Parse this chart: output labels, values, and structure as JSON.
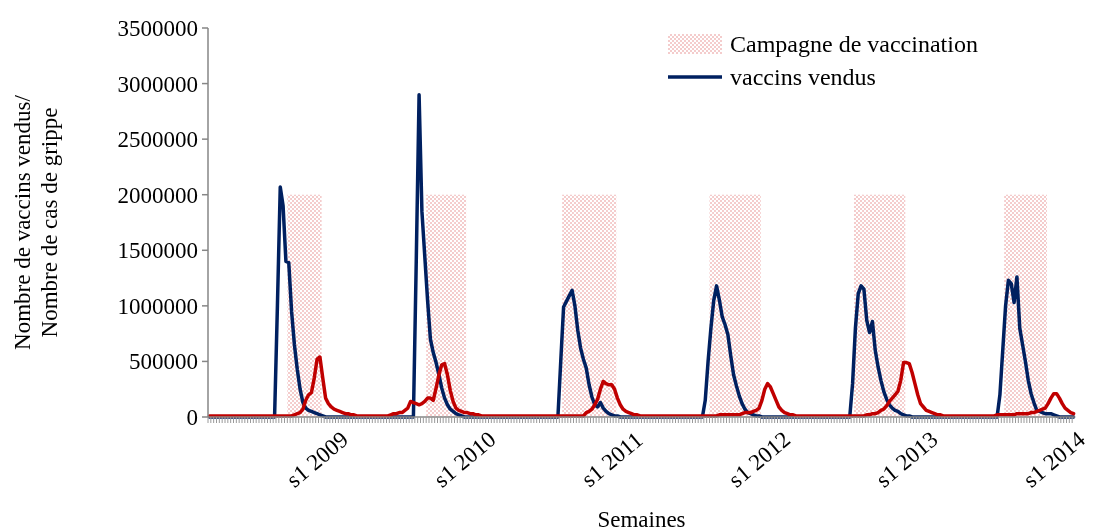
{
  "chart_data": {
    "type": "line",
    "xlabel": "Semaines",
    "ylabel": "Nombre de vaccins vendus/\nNombre de cas de grippe",
    "categories": [
      null,
      null,
      null,
      null,
      null,
      null,
      null,
      null,
      null,
      null,
      null,
      null,
      null,
      null,
      null,
      null,
      null,
      null,
      null,
      null,
      null,
      null,
      null,
      null,
      null,
      null,
      null,
      null,
      null,
      null,
      null,
      null,
      null,
      null,
      null,
      null,
      null,
      null,
      "s1 2009",
      null,
      null,
      null,
      null,
      null,
      null,
      null,
      null,
      null,
      null,
      null,
      null,
      null,
      null,
      null,
      null,
      null,
      null,
      null,
      null,
      null,
      null,
      null,
      null,
      null,
      null,
      null,
      null,
      null,
      null,
      null,
      null,
      null,
      null,
      null,
      null,
      null,
      null,
      null,
      null,
      null,
      null,
      null,
      null,
      null,
      null,
      null,
      null,
      null,
      null,
      null,
      "s1 2010",
      null,
      null,
      null,
      null,
      null,
      null,
      null,
      null,
      null,
      null,
      null,
      null,
      null,
      null,
      null,
      null,
      null,
      null,
      null,
      null,
      null,
      null,
      null,
      null,
      null,
      null,
      null,
      null,
      null,
      null,
      null,
      null,
      null,
      null,
      null,
      null,
      null,
      null,
      null,
      null,
      null,
      null,
      null,
      null,
      null,
      null,
      null,
      null,
      null,
      null,
      null,
      "s1 2011",
      null,
      null,
      null,
      null,
      null,
      null,
      null,
      null,
      null,
      null,
      null,
      null,
      null,
      null,
      null,
      null,
      null,
      null,
      null,
      null,
      null,
      null,
      null,
      null,
      null,
      null,
      null,
      null,
      null,
      null,
      null,
      null,
      null,
      null,
      null,
      null,
      null,
      null,
      null,
      null,
      null,
      null,
      null,
      null,
      null,
      null,
      null,
      null,
      null,
      null,
      null,
      "s1 2012",
      null,
      null,
      null,
      null,
      null,
      null,
      null,
      null,
      null,
      null,
      null,
      null,
      null,
      null,
      null,
      null,
      null,
      null,
      null,
      null,
      null,
      null,
      null,
      null,
      null,
      null,
      null,
      null,
      null,
      null,
      null,
      null,
      null,
      null,
      null,
      null,
      null,
      null,
      null,
      null,
      null,
      null,
      null,
      null,
      null,
      null,
      null,
      null,
      null,
      null,
      null,
      "s1 2013",
      null,
      null,
      null,
      null,
      null,
      null,
      null,
      null,
      null,
      null,
      null,
      null,
      null,
      null,
      null,
      null,
      null,
      null,
      null,
      null,
      null,
      null,
      null,
      null,
      null,
      null,
      null,
      null,
      null,
      null,
      null,
      null,
      null,
      null,
      null,
      null,
      null,
      null,
      null,
      null,
      null,
      null,
      null,
      null,
      null,
      null,
      null,
      null,
      null,
      null,
      null,
      "s1 2014",
      null,
      null,
      null,
      null,
      null,
      null,
      null
    ],
    "ylim": [
      0,
      3500000
    ],
    "yticks": [
      0,
      500000,
      1000000,
      1500000,
      2000000,
      2500000,
      3000000,
      3500000
    ],
    "legend": "top right",
    "marker": "none",
    "line_style": "solid",
    "series": [
      {
        "type": "bar",
        "name": "Campagne de vaccination",
        "color": "#f4cccc",
        "values": [
          null,
          null,
          null,
          null,
          null,
          null,
          null,
          null,
          null,
          null,
          null,
          null,
          null,
          null,
          null,
          null,
          null,
          null,
          null,
          null,
          null,
          null,
          null,
          null,
          null,
          null,
          null,
          null,
          2000000,
          2000000,
          2000000,
          2000000,
          2000000,
          2000000,
          2000000,
          2000000,
          2000000,
          2000000,
          2000000,
          2000000,
          null,
          null,
          null,
          null,
          null,
          null,
          null,
          null,
          null,
          null,
          null,
          null,
          null,
          null,
          null,
          null,
          null,
          null,
          null,
          null,
          null,
          null,
          null,
          null,
          null,
          null,
          null,
          null,
          null,
          null,
          null,
          null,
          null,
          null,
          null,
          null,
          null,
          2000000,
          2000000,
          2000000,
          2000000,
          2000000,
          2000000,
          2000000,
          2000000,
          2000000,
          2000000,
          2000000,
          2000000,
          2000000,
          2000000,
          null,
          null,
          null,
          null,
          null,
          null,
          null,
          null,
          null,
          null,
          null,
          null,
          null,
          null,
          null,
          null,
          null,
          null,
          null,
          null,
          null,
          null,
          null,
          null,
          null,
          null,
          null,
          null,
          null,
          null,
          null,
          null,
          null,
          null,
          2000000,
          2000000,
          2000000,
          2000000,
          2000000,
          2000000,
          2000000,
          2000000,
          2000000,
          2000000,
          2000000,
          2000000,
          2000000,
          2000000,
          2000000,
          2000000,
          2000000,
          2000000,
          2000000,
          null,
          null,
          null,
          null,
          null,
          null,
          null,
          null,
          null,
          null,
          null,
          null,
          null,
          null,
          null,
          null,
          null,
          null,
          null,
          null,
          null,
          null,
          null,
          null,
          null,
          null,
          null,
          null,
          null,
          null,
          null,
          null,
          null,
          2000000,
          2000000,
          2000000,
          2000000,
          2000000,
          2000000,
          2000000,
          2000000,
          2000000,
          2000000,
          2000000,
          2000000,
          2000000,
          2000000,
          2000000,
          2000000,
          2000000,
          2000000,
          null,
          null,
          null,
          null,
          null,
          null,
          null,
          null,
          null,
          null,
          null,
          null,
          null,
          null,
          null,
          null,
          null,
          null,
          null,
          null,
          null,
          null,
          null,
          null,
          null,
          null,
          null,
          null,
          null,
          null,
          null,
          null,
          null,
          2000000,
          2000000,
          2000000,
          2000000,
          2000000,
          2000000,
          2000000,
          2000000,
          2000000,
          2000000,
          2000000,
          2000000,
          2000000,
          2000000,
          2000000,
          2000000,
          2000000,
          2000000,
          null,
          null,
          null,
          null,
          null,
          null,
          null,
          null,
          null,
          null,
          null,
          null,
          null,
          null,
          null,
          null,
          null,
          null,
          null,
          null,
          null,
          null,
          null,
          null,
          null,
          null,
          null,
          null,
          null,
          null,
          null,
          null,
          null,
          null,
          null,
          2000000,
          2000000,
          2000000,
          2000000,
          2000000,
          2000000,
          2000000,
          2000000,
          2000000,
          2000000,
          2000000,
          2000000,
          2000000,
          2000000,
          2000000,
          null,
          null,
          null,
          null,
          null,
          null,
          null,
          null,
          null,
          null
        ]
      },
      {
        "name": "vaccins vendus",
        "color": "#002060",
        "values": [
          0,
          0,
          0,
          0,
          0,
          0,
          0,
          0,
          0,
          0,
          0,
          0,
          0,
          0,
          0,
          0,
          0,
          0,
          0,
          0,
          0,
          0,
          0,
          0,
          1000000,
          2070000,
          1900000,
          1400000,
          1390000,
          950000,
          650000,
          430000,
          250000,
          130000,
          80000,
          60000,
          50000,
          40000,
          30000,
          20000,
          10000,
          0,
          0,
          0,
          0,
          0,
          0,
          0,
          0,
          0,
          0,
          0,
          0,
          0,
          0,
          0,
          0,
          0,
          0,
          0,
          0,
          0,
          0,
          0,
          0,
          0,
          0,
          0,
          0,
          0,
          0,
          0,
          0,
          1400000,
          2900000,
          1850000,
          1450000,
          1050000,
          700000,
          580000,
          490000,
          380000,
          260000,
          170000,
          110000,
          70000,
          50000,
          30000,
          20000,
          10000,
          0,
          0,
          0,
          0,
          0,
          0,
          0,
          0,
          0,
          0,
          0,
          0,
          0,
          0,
          0,
          0,
          0,
          0,
          0,
          0,
          0,
          0,
          0,
          0,
          0,
          0,
          0,
          0,
          0,
          0,
          0,
          0,
          0,
          0,
          500000,
          990000,
          1040000,
          1090000,
          1140000,
          1000000,
          780000,
          620000,
          520000,
          440000,
          290000,
          180000,
          110000,
          90000,
          130000,
          80000,
          50000,
          30000,
          20000,
          10000,
          10000,
          0,
          0,
          0,
          0,
          0,
          0,
          0,
          0,
          0,
          0,
          0,
          0,
          0,
          0,
          0,
          0,
          0,
          0,
          0,
          0,
          0,
          0,
          0,
          0,
          0,
          0,
          0,
          0,
          0,
          0,
          150000,
          500000,
          800000,
          1050000,
          1180000,
          1050000,
          900000,
          830000,
          740000,
          550000,
          380000,
          280000,
          190000,
          120000,
          70000,
          40000,
          30000,
          20000,
          10000,
          10000,
          0,
          0,
          0,
          0,
          0,
          0,
          0,
          0,
          0,
          0,
          0,
          0,
          0,
          0,
          0,
          0,
          0,
          0,
          0,
          0,
          0,
          0,
          0,
          0,
          0,
          0,
          0,
          0,
          0,
          0,
          0,
          0,
          300000,
          800000,
          1110000,
          1180000,
          1150000,
          870000,
          760000,
          860000,
          600000,
          450000,
          330000,
          230000,
          160000,
          110000,
          80000,
          60000,
          50000,
          30000,
          20000,
          10000,
          10000,
          0,
          0,
          0,
          0,
          0,
          0,
          0,
          0,
          0,
          0,
          0,
          0,
          0,
          0,
          0,
          0,
          0,
          0,
          0,
          0,
          0,
          0,
          0,
          0,
          0,
          0,
          0,
          0,
          0,
          0,
          0,
          200000,
          600000,
          1000000,
          1230000,
          1200000,
          1030000,
          1260000,
          800000,
          650000,
          500000,
          330000,
          210000,
          130000,
          60000,
          50000,
          40000,
          30000,
          30000,
          30000,
          20000,
          10000,
          0,
          0,
          0,
          0,
          0,
          0
        ]
      },
      {
        "color": "#c00000",
        "values": [
          10000,
          10000,
          10000,
          10000,
          10000,
          10000,
          10000,
          10000,
          10000,
          10000,
          10000,
          10000,
          10000,
          10000,
          10000,
          10000,
          10000,
          10000,
          10000,
          10000,
          10000,
          10000,
          10000,
          10000,
          10000,
          10000,
          10000,
          10000,
          10000,
          10000,
          20000,
          30000,
          40000,
          70000,
          150000,
          200000,
          220000,
          350000,
          520000,
          540000,
          350000,
          170000,
          120000,
          90000,
          70000,
          60000,
          50000,
          40000,
          30000,
          30000,
          20000,
          20000,
          10000,
          10000,
          10000,
          10000,
          10000,
          10000,
          10000,
          10000,
          10000,
          10000,
          10000,
          10000,
          20000,
          30000,
          30000,
          40000,
          40000,
          60000,
          80000,
          140000,
          130000,
          120000,
          110000,
          120000,
          140000,
          170000,
          170000,
          150000,
          260000,
          380000,
          470000,
          480000,
          380000,
          240000,
          140000,
          80000,
          60000,
          50000,
          40000,
          40000,
          30000,
          30000,
          20000,
          20000,
          10000,
          10000,
          10000,
          10000,
          10000,
          10000,
          10000,
          10000,
          10000,
          10000,
          10000,
          10000,
          10000,
          10000,
          10000,
          10000,
          10000,
          10000,
          10000,
          10000,
          10000,
          10000,
          10000,
          10000,
          10000,
          10000,
          10000,
          10000,
          10000,
          10000,
          10000,
          10000,
          10000,
          10000,
          10000,
          10000,
          10000,
          40000,
          50000,
          70000,
          110000,
          160000,
          250000,
          320000,
          300000,
          290000,
          290000,
          250000,
          170000,
          110000,
          70000,
          50000,
          40000,
          30000,
          20000,
          20000,
          10000,
          10000,
          10000,
          10000,
          10000,
          10000,
          10000,
          10000,
          10000,
          10000,
          10000,
          10000,
          10000,
          10000,
          10000,
          10000,
          10000,
          10000,
          10000,
          10000,
          10000,
          10000,
          10000,
          10000,
          10000,
          10000,
          10000,
          10000,
          20000,
          20000,
          20000,
          20000,
          20000,
          20000,
          20000,
          20000,
          30000,
          40000,
          40000,
          40000,
          50000,
          60000,
          80000,
          150000,
          250000,
          300000,
          270000,
          210000,
          150000,
          90000,
          60000,
          40000,
          30000,
          20000,
          20000,
          10000,
          10000,
          10000,
          10000,
          10000,
          10000,
          10000,
          10000,
          10000,
          10000,
          10000,
          10000,
          10000,
          10000,
          10000,
          10000,
          10000,
          10000,
          10000,
          10000,
          10000,
          10000,
          10000,
          10000,
          10000,
          20000,
          20000,
          30000,
          30000,
          40000,
          60000,
          70000,
          100000,
          140000,
          170000,
          200000,
          230000,
          330000,
          490000,
          490000,
          480000,
          400000,
          300000,
          200000,
          120000,
          90000,
          60000,
          50000,
          40000,
          30000,
          20000,
          20000,
          10000,
          10000,
          10000,
          10000,
          10000,
          10000,
          10000,
          10000,
          10000,
          10000,
          10000,
          10000,
          10000,
          10000,
          10000,
          10000,
          10000,
          10000,
          10000,
          20000,
          20000,
          20000,
          20000,
          20000,
          20000,
          20000,
          30000,
          30000,
          30000,
          30000,
          30000,
          40000,
          40000,
          50000,
          60000,
          70000,
          80000,
          120000,
          170000,
          210000,
          210000,
          170000,
          120000,
          80000,
          60000,
          40000,
          30000
        ]
      }
    ]
  }
}
